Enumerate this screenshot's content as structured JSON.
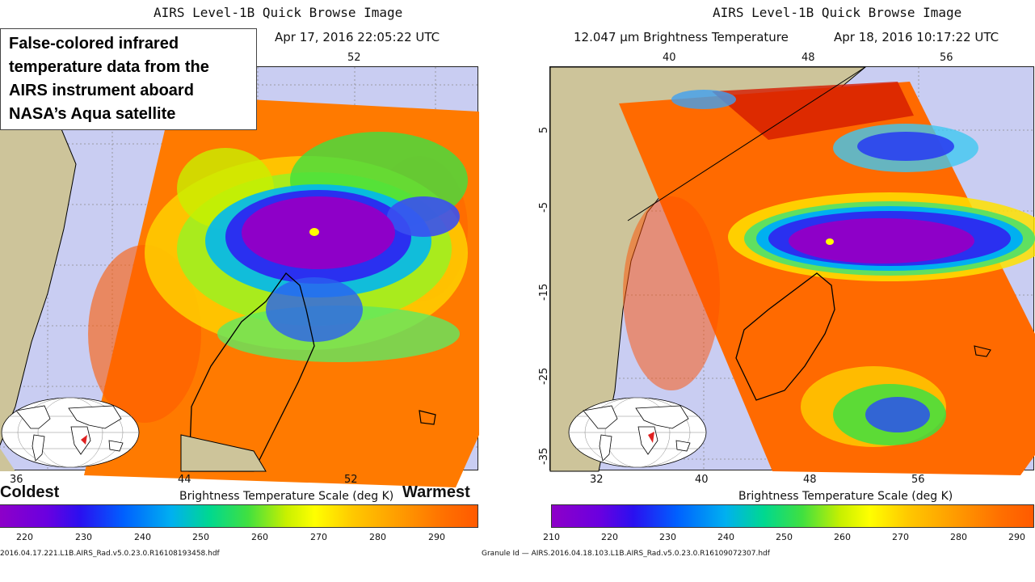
{
  "left": {
    "title": "AIRS Level-1B Quick Browse Image",
    "datetime": "Apr 17, 2016 22:05:22 UTC",
    "top_tick": "52",
    "bottom_ticks": [
      "36",
      "44",
      "52"
    ],
    "scale_title": "Brightness Temperature Scale (deg K)",
    "cbar_labels": [
      "220",
      "230",
      "240",
      "250",
      "260",
      "270",
      "280",
      "290"
    ],
    "granule": "2016.04.17.221.L1B.AIRS_Rad.v5.0.23.0.R16108193458.hdf",
    "note": "False-colored infrared temperature data from the AIRS instrument aboard NASA’s Aqua satellite",
    "coldest": "Coldest",
    "warmest": "Warmest"
  },
  "right": {
    "title": "AIRS Level-1B Quick Browse Image",
    "subtitle": "12.047 μm Brightness Temperature",
    "datetime": "Apr 18, 2016 10:17:22 UTC",
    "top_ticks": [
      "40",
      "48",
      "56"
    ],
    "bottom_ticks": [
      "32",
      "40",
      "48",
      "56"
    ],
    "left_ticks": [
      "5",
      "-5",
      "-15",
      "-25",
      "-35"
    ],
    "scale_title": "Brightness Temperature Scale (deg K)",
    "cbar_labels": [
      "210",
      "220",
      "230",
      "240",
      "250",
      "260",
      "270",
      "280",
      "290"
    ],
    "granule": "Granule Id — AIRS.2016.04.18.103.L1B.AIRS_Rad.v5.0.23.0.R16109072307.hdf"
  },
  "colors": {
    "ocean": "#c9cdf2",
    "land": "#cdc49a",
    "warm": "#ff7a00",
    "cold": "#8e00c8"
  }
}
